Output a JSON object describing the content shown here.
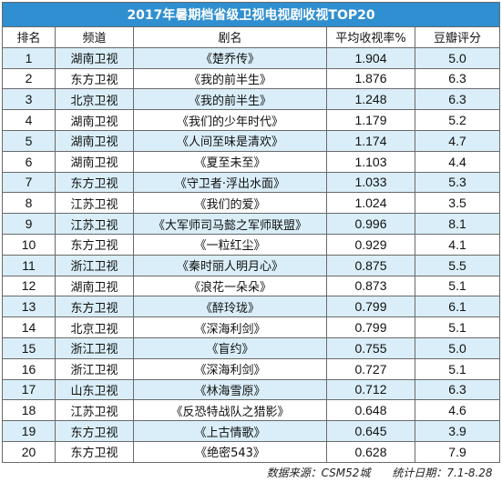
{
  "chart_data": {
    "type": "table",
    "title": "2017年暑期档省级卫视电视剧收视TOP20",
    "columns": [
      "排名",
      "频道",
      "剧名",
      "平均收视率%",
      "豆瓣评分"
    ],
    "rows": [
      {
        "rank": "1",
        "channel": "湖南卫视",
        "drama": "《楚乔传》",
        "rating": "1.904",
        "douban": "5.0"
      },
      {
        "rank": "2",
        "channel": "东方卫视",
        "drama": "《我的前半生》",
        "rating": "1.876",
        "douban": "6.3"
      },
      {
        "rank": "3",
        "channel": "北京卫视",
        "drama": "《我的前半生》",
        "rating": "1.248",
        "douban": "6.3"
      },
      {
        "rank": "4",
        "channel": "湖南卫视",
        "drama": "《我们的少年时代》",
        "rating": "1.179",
        "douban": "5.2"
      },
      {
        "rank": "5",
        "channel": "湖南卫视",
        "drama": "《人间至味是清欢》",
        "rating": "1.174",
        "douban": "4.7"
      },
      {
        "rank": "6",
        "channel": "湖南卫视",
        "drama": "《夏至未至》",
        "rating": "1.103",
        "douban": "4.4"
      },
      {
        "rank": "7",
        "channel": "东方卫视",
        "drama": "《守卫者·浮出水面》",
        "rating": "1.033",
        "douban": "5.3"
      },
      {
        "rank": "8",
        "channel": "江苏卫视",
        "drama": "《我们的爱》",
        "rating": "1.024",
        "douban": "3.5"
      },
      {
        "rank": "9",
        "channel": "江苏卫视",
        "drama": "《大军师司马懿之军师联盟》",
        "rating": "0.996",
        "douban": "8.1"
      },
      {
        "rank": "10",
        "channel": "东方卫视",
        "drama": "《一粒红尘》",
        "rating": "0.929",
        "douban": "4.1"
      },
      {
        "rank": "11",
        "channel": "浙江卫视",
        "drama": "《秦时丽人明月心》",
        "rating": "0.875",
        "douban": "5.5"
      },
      {
        "rank": "12",
        "channel": "湖南卫视",
        "drama": "《浪花一朵朵》",
        "rating": "0.873",
        "douban": "5.1"
      },
      {
        "rank": "13",
        "channel": "东方卫视",
        "drama": "《醉玲珑》",
        "rating": "0.799",
        "douban": "6.1"
      },
      {
        "rank": "14",
        "channel": "北京卫视",
        "drama": "《深海利剑》",
        "rating": "0.799",
        "douban": "5.1"
      },
      {
        "rank": "15",
        "channel": "浙江卫视",
        "drama": "《盲约》",
        "rating": "0.755",
        "douban": "5.0"
      },
      {
        "rank": "16",
        "channel": "浙江卫视",
        "drama": "《深海利剑》",
        "rating": "0.727",
        "douban": "5.1"
      },
      {
        "rank": "17",
        "channel": "山东卫视",
        "drama": "《林海雪原》",
        "rating": "0.712",
        "douban": "6.3"
      },
      {
        "rank": "18",
        "channel": "江苏卫视",
        "drama": "《反恐特战队之猎影》",
        "rating": "0.648",
        "douban": "4.6"
      },
      {
        "rank": "19",
        "channel": "东方卫视",
        "drama": "《上古情歌》",
        "rating": "0.645",
        "douban": "3.9"
      },
      {
        "rank": "20",
        "channel": "东方卫视",
        "drama": "《绝密543》",
        "rating": "0.628",
        "douban": "7.9"
      }
    ],
    "footer": "数据来源：CSM52城　　统计日期：7.1-8.28",
    "colors": {
      "title_bg": "#2f8fd0",
      "stripe": "#d9eef8",
      "border": "#6a6a6a"
    }
  }
}
